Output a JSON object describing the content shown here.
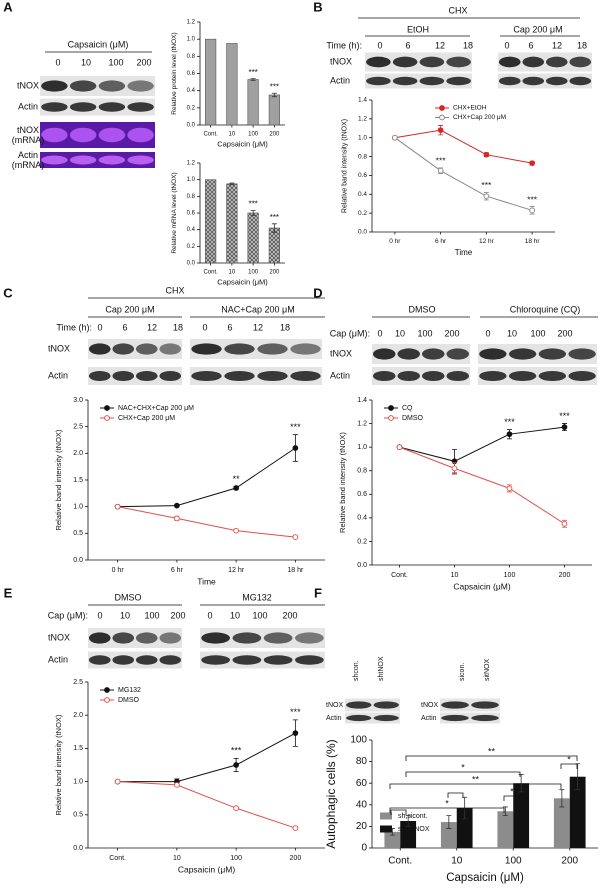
{
  "panel_labels": [
    "A",
    "B",
    "C",
    "D",
    "E",
    "F"
  ],
  "blots": [
    {
      "heading": "Capsaicin (μM)",
      "lanes": [
        [
          "0",
          "10",
          "100",
          "200"
        ]
      ],
      "rows": [
        "tNOX",
        "Actin",
        "tNOX (mRNA)",
        "Actin (mRNA)"
      ]
    },
    {
      "title": "CHX",
      "groups": [
        "EtOH",
        "Cap 200 μM"
      ],
      "heading": "Time (h):",
      "lanes": [
        [
          "0",
          "6",
          "12",
          "18"
        ],
        [
          "0",
          "6",
          "12",
          "18"
        ]
      ],
      "rows": [
        "tNOX",
        "Actin"
      ]
    },
    {
      "title": "CHX",
      "groups": [
        "Cap 200 μM",
        "NAC+Cap 200 μM"
      ],
      "heading": "Time (h):",
      "lanes": [
        [
          "0",
          "6",
          "12",
          "18"
        ],
        [
          "0",
          "6",
          "12",
          "18"
        ]
      ],
      "rows": [
        "tNOX",
        "Actin"
      ]
    },
    {
      "groups": [
        "DMSO",
        "Chloroquine (CQ)"
      ],
      "heading": "Cap (μM):",
      "lanes": [
        [
          "0",
          "10",
          "100",
          "200"
        ],
        [
          "0",
          "10",
          "100",
          "200"
        ]
      ],
      "rows": [
        "tNOX",
        "Actin"
      ]
    },
    {
      "groups": [
        "DMSO",
        "MG132"
      ],
      "heading": "Cap (μM):",
      "lanes": [
        [
          "0",
          "10",
          "100",
          "200"
        ],
        [
          "0",
          "10",
          "100",
          "200"
        ]
      ],
      "rows": [
        "tNOX",
        "Actin"
      ]
    },
    {
      "lanes": [
        [
          "shcon.",
          "shtNOX"
        ]
      ],
      "rows": [
        "tNOX",
        "Actin"
      ]
    },
    {
      "lanes": [
        [
          "sicon.",
          "sitNOX"
        ]
      ],
      "rows": [
        "tNOX",
        "Actin"
      ]
    }
  ],
  "chart_data": [
    {
      "type": "bar",
      "y_label": "Relative protein level (tNOX)",
      "x_label": "Capsaicin (μM)",
      "categories": [
        "Cont.",
        "10",
        "100",
        "200"
      ],
      "values": [
        1.0,
        0.95,
        0.53,
        0.35
      ],
      "errors": [
        0,
        0,
        0.01,
        0.02
      ],
      "color": "#a0a0a0",
      "ylim": [
        0,
        1.2
      ],
      "yticks": [
        {
          "value": 0,
          "label": "0.0"
        },
        {
          "value": 0.2,
          "label": "0.2"
        },
        {
          "value": 0.4,
          "label": "0.4"
        },
        {
          "value": 0.6,
          "label": "0.6"
        },
        {
          "value": 0.8,
          "label": "0.8"
        },
        {
          "value": 1,
          "label": "1.0"
        },
        {
          "value": 1.2,
          "label": "1.2"
        }
      ],
      "annotations": [
        {
          "label": "***",
          "category": "100"
        },
        {
          "label": "***",
          "category": "200"
        }
      ]
    },
    {
      "type": "bar",
      "y_label": "Relative mRNA  level (tNOX)",
      "x_label": "Capsaicin (μM)",
      "categories": [
        "Cont.",
        "10",
        "100",
        "200"
      ],
      "values": [
        1.0,
        0.95,
        0.6,
        0.42
      ],
      "errors": [
        0,
        0.01,
        0.03,
        0.05
      ],
      "color": "#a0a0a0",
      "pattern": "crosshatch",
      "ylim": [
        0,
        1.2
      ],
      "yticks": [
        {
          "value": 0,
          "label": "0.0"
        },
        {
          "value": 0.2,
          "label": "0.2"
        },
        {
          "value": 0.4,
          "label": "0.4"
        },
        {
          "value": 0.6,
          "label": "0.6"
        },
        {
          "value": 0.8,
          "label": "0.8"
        },
        {
          "value": 1,
          "label": "1.0"
        },
        {
          "value": 1.2,
          "label": "1.2"
        }
      ],
      "annotations": [
        {
          "label": "***",
          "category": "100"
        },
        {
          "label": "***",
          "category": "200"
        }
      ]
    },
    {
      "type": "line",
      "y_label": "Relative band intensity (tNOX)",
      "x_label": "Time",
      "categories": [
        "0 hr",
        "6 hr",
        "12 hr",
        "18 hr"
      ],
      "legend": "upper right",
      "series": [
        {
          "name": "CHX+EtOH",
          "color": "#d62728",
          "marker": "filled",
          "values": [
            1.0,
            1.08,
            0.82,
            0.73
          ],
          "errors": [
            0,
            0.05,
            0.02,
            0.02
          ]
        },
        {
          "name": "CHX+Cap 200 μM",
          "color": "#888888",
          "marker": "open",
          "values": [
            1.0,
            0.65,
            0.38,
            0.23
          ],
          "errors": [
            0,
            0.03,
            0.04,
            0.04
          ]
        }
      ],
      "ylim": [
        0,
        1.4
      ],
      "yticks": [
        {
          "value": 0,
          "label": "0.0"
        },
        {
          "value": 0.2,
          "label": "0.2"
        },
        {
          "value": 0.4,
          "label": "0.4"
        },
        {
          "value": 0.6,
          "label": "0.6"
        },
        {
          "value": 0.8,
          "label": "0.8"
        },
        {
          "value": 1,
          "label": "1.0"
        },
        {
          "value": 1.2,
          "label": "1.2"
        },
        {
          "value": 1.4,
          "label": "1.4"
        }
      ],
      "annotations": [
        {
          "label": "***",
          "category": "6 hr",
          "series": "CHX+Cap 200 μM"
        },
        {
          "label": "***",
          "category": "12 hr",
          "series": "CHX+Cap 200 μM"
        },
        {
          "label": "***",
          "category": "18 hr",
          "series": "CHX+Cap 200 μM"
        }
      ]
    },
    {
      "type": "line",
      "y_label": "Relative band intensity (tNOX)",
      "x_label": "Time",
      "categories": [
        "0 hr",
        "6 hr",
        "12 hr",
        "18 hr"
      ],
      "legend": "upper left",
      "series": [
        {
          "name": "NAC+CHX+Cap 200 μM",
          "color": "#111111",
          "marker": "filled",
          "values": [
            1.0,
            1.02,
            1.35,
            2.1
          ],
          "errors": [
            0,
            0.02,
            0.03,
            0.25
          ]
        },
        {
          "name": "CHX+Cap 200 μM",
          "color": "#e0504a",
          "marker": "open",
          "values": [
            1.0,
            0.78,
            0.55,
            0.43
          ],
          "errors": [
            0,
            0.04,
            0.02,
            0.02
          ]
        }
      ],
      "ylim": [
        0,
        3
      ],
      "yticks": [
        {
          "value": 0,
          "label": "0.0"
        },
        {
          "value": 0.5,
          "label": "0.5"
        },
        {
          "value": 1,
          "label": "1.0"
        },
        {
          "value": 1.5,
          "label": "1.5"
        },
        {
          "value": 2,
          "label": "2.0"
        },
        {
          "value": 2.5,
          "label": "2.5"
        },
        {
          "value": 3,
          "label": "3.0"
        }
      ],
      "annotations": [
        {
          "label": "**",
          "category": "12 hr",
          "series": "NAC+CHX+Cap 200 μM"
        },
        {
          "label": "***",
          "category": "18 hr",
          "series": "NAC+CHX+Cap 200 μM"
        }
      ]
    },
    {
      "type": "line",
      "y_label": "Relative band intensity (tNOX)",
      "x_label": "Capsaicin (μM)",
      "categories": [
        "Cont.",
        "10",
        "100",
        "200"
      ],
      "legend": "upper left",
      "series": [
        {
          "name": "CQ",
          "color": "#111111",
          "marker": "filled",
          "values": [
            1.0,
            0.88,
            1.11,
            1.17
          ],
          "errors": [
            0,
            0.1,
            0.04,
            0.03
          ]
        },
        {
          "name": "DMSO",
          "color": "#e0504a",
          "marker": "open",
          "values": [
            1.0,
            0.82,
            0.65,
            0.35
          ],
          "errors": [
            0,
            0.05,
            0.03,
            0.03
          ]
        }
      ],
      "ylim": [
        0,
        1.4
      ],
      "yticks": [
        {
          "value": 0,
          "label": "0.0"
        },
        {
          "value": 0.2,
          "label": "0.2"
        },
        {
          "value": 0.4,
          "label": "0.4"
        },
        {
          "value": 0.6,
          "label": "0.6"
        },
        {
          "value": 0.8,
          "label": "0.8"
        },
        {
          "value": 1,
          "label": "1.0"
        },
        {
          "value": 1.2,
          "label": "1.2"
        },
        {
          "value": 1.4,
          "label": "1.4"
        }
      ],
      "annotations": [
        {
          "label": "***",
          "category": "100",
          "series": "CQ"
        },
        {
          "label": "***",
          "category": "200",
          "series": "CQ"
        }
      ]
    },
    {
      "type": "line",
      "y_label": "Relative band intensity (tNOX)",
      "x_label": "Capsaicin (μM)",
      "categories": [
        "Cont.",
        "10",
        "100",
        "200"
      ],
      "legend": "upper left",
      "series": [
        {
          "name": "MG132",
          "color": "#111111",
          "marker": "filled",
          "values": [
            1.0,
            1.0,
            1.25,
            1.73
          ],
          "errors": [
            0,
            0.04,
            0.1,
            0.2
          ]
        },
        {
          "name": "DMSO",
          "color": "#e0504a",
          "marker": "open",
          "values": [
            1.0,
            0.95,
            0.6,
            0.3
          ],
          "errors": [
            0,
            0.02,
            0.02,
            0.02
          ]
        }
      ],
      "ylim": [
        0,
        2.5
      ],
      "yticks": [
        {
          "value": 0,
          "label": "0.0"
        },
        {
          "value": 0.5,
          "label": "0.5"
        },
        {
          "value": 1,
          "label": "1.0"
        },
        {
          "value": 1.5,
          "label": "1.5"
        },
        {
          "value": 2,
          "label": "2.0"
        },
        {
          "value": 2.5,
          "label": "2.5"
        }
      ],
      "annotations": [
        {
          "label": "***",
          "category": "100",
          "series": "MG132"
        },
        {
          "label": "***",
          "category": "200",
          "series": "MG132"
        }
      ]
    },
    {
      "type": "bar",
      "y_label": "Autophagic cells (%)",
      "x_label": "Capsaicin (μM)",
      "categories": [
        "Cont.",
        "10",
        "100",
        "200"
      ],
      "legend": "lower left",
      "series": [
        {
          "name": "sh,sicont.",
          "color": "#8c8c8c",
          "values": [
            15,
            24,
            34,
            46
          ],
          "errors": [
            3,
            6,
            4,
            8
          ]
        },
        {
          "name": "sh,sitNOX",
          "color": "#111111",
          "values": [
            25,
            37,
            60,
            66
          ],
          "errors": [
            5,
            10,
            8,
            12
          ]
        }
      ],
      "ylim": [
        0,
        100
      ],
      "yticks": [
        0,
        20,
        40,
        60,
        80,
        100
      ],
      "brackets": [
        "**",
        "*",
        "**",
        "*",
        "*",
        "*"
      ]
    }
  ]
}
